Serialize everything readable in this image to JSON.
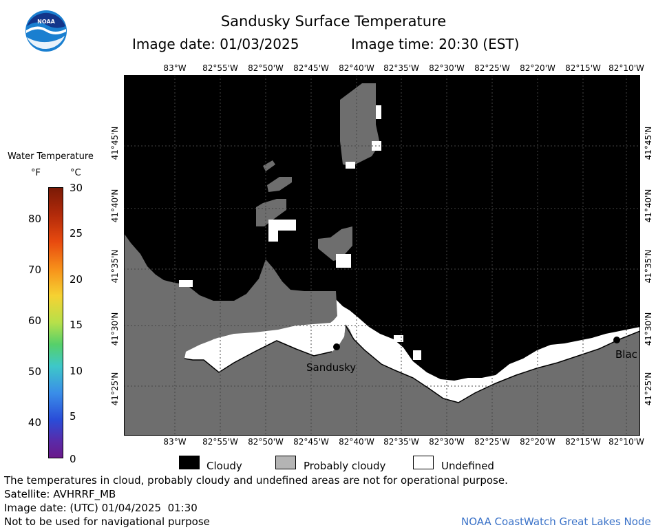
{
  "header": {
    "title": "Sandusky Surface Temperature",
    "image_date_line": "Image date: 01/03/2025",
    "image_time_line": "Image time: 20:30 (EST)"
  },
  "logo": {
    "text": "NOAA",
    "icon": "noaa-logo-icon",
    "colors": {
      "blue": "#1a7fd0",
      "navy": "#13358a",
      "white": "#ffffff"
    }
  },
  "map": {
    "longitude_labels": [
      "83°W",
      "82°55'W",
      "82°50'W",
      "82°45'W",
      "82°40'W",
      "82°35'W",
      "82°30'W",
      "82°25'W",
      "82°20'W",
      "82°15'W",
      "82°10'W"
    ],
    "latitude_labels": [
      "41°45'N",
      "41°40'N",
      "41°35'N",
      "41°30'N",
      "41°25'N"
    ],
    "places": [
      {
        "name": "Sandusky"
      },
      {
        "name": "Blac"
      }
    ],
    "colors": {
      "cloudy": "#000000",
      "probably_cloudy": "#6e6e6e",
      "undefined": "#ffffff",
      "grid": "#444444"
    }
  },
  "legend": {
    "title": "Water Temperature",
    "unit_f": "°F",
    "unit_c": "°C",
    "fahrenheit_ticks": [
      "80",
      "70",
      "60",
      "50",
      "40"
    ],
    "celsius_ticks": [
      "30",
      "25",
      "20",
      "15",
      "10",
      "5",
      "0"
    ],
    "celsius_min": 0,
    "celsius_max": 30
  },
  "key": {
    "cloudy": "Cloudy",
    "probably_cloudy": "Probably cloudy",
    "undefined": "Undefined"
  },
  "footer": {
    "disclaimer": "The temperatures in cloud, probably cloudy and undefined areas are not for operational purpose.",
    "satellite": "Satellite: AVHRRF_MB",
    "utc_date": "Image date: (UTC) 01/04/2025  01:30",
    "navigation": "Not to be used for navigational purpose",
    "credit": "NOAA CoastWatch Great Lakes Node"
  }
}
